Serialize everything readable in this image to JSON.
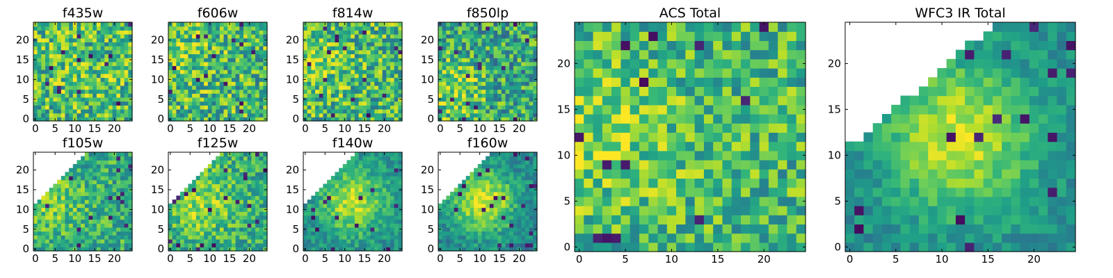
{
  "colors": {
    "colormap": "viridis",
    "background": "#ffffff",
    "frame": "#000000"
  },
  "chart_data": [
    {
      "type": "heatmap",
      "title": "f435w",
      "grid_size": [
        25,
        25
      ],
      "xlim": [
        0,
        24
      ],
      "ylim": [
        0,
        24
      ],
      "xticks": [
        0,
        5,
        10,
        15,
        20
      ],
      "yticks": [
        0,
        5,
        10,
        15,
        20
      ],
      "mask": "none",
      "center": [
        12,
        12
      ],
      "brightness": 0.68,
      "contrast": 0.3,
      "core_amp": 0.05,
      "seed": 11
    },
    {
      "type": "heatmap",
      "title": "f606w",
      "grid_size": [
        25,
        25
      ],
      "xlim": [
        0,
        24
      ],
      "ylim": [
        0,
        24
      ],
      "xticks": [
        0,
        5,
        10,
        15,
        20
      ],
      "yticks": [
        0,
        5,
        10,
        15,
        20
      ],
      "mask": "none",
      "center": [
        3,
        15
      ],
      "brightness": 0.66,
      "contrast": 0.3,
      "core_amp": 0.12,
      "seed": 23
    },
    {
      "type": "heatmap",
      "title": "f814w",
      "grid_size": [
        25,
        25
      ],
      "xlim": [
        0,
        24
      ],
      "ylim": [
        0,
        24
      ],
      "xticks": [
        0,
        5,
        10,
        15,
        20
      ],
      "yticks": [
        0,
        5,
        10,
        15,
        20
      ],
      "mask": "none",
      "center": [
        3,
        14
      ],
      "brightness": 0.66,
      "contrast": 0.3,
      "core_amp": 0.12,
      "seed": 37
    },
    {
      "type": "heatmap",
      "title": "f850lp",
      "grid_size": [
        25,
        25
      ],
      "xlim": [
        0,
        24
      ],
      "ylim": [
        0,
        24
      ],
      "xticks": [
        0,
        5,
        10,
        15,
        20
      ],
      "yticks": [
        0,
        5,
        10,
        15,
        20
      ],
      "mask": "none",
      "center": [
        3,
        7
      ],
      "brightness": 0.58,
      "contrast": 0.3,
      "core_amp": 0.25,
      "seed": 41
    },
    {
      "type": "heatmap",
      "title": "f105w",
      "grid_size": [
        25,
        25
      ],
      "xlim": [
        0,
        24
      ],
      "ylim": [
        0,
        24
      ],
      "xticks": [
        0,
        5,
        10,
        15,
        20
      ],
      "yticks": [
        0,
        5,
        10,
        15,
        20
      ],
      "mask": "upper-left",
      "center": [
        4,
        12
      ],
      "brightness": 0.62,
      "contrast": 0.22,
      "core_amp": 0.15,
      "seed": 53
    },
    {
      "type": "heatmap",
      "title": "f125w",
      "grid_size": [
        25,
        25
      ],
      "xlim": [
        0,
        24
      ],
      "ylim": [
        0,
        24
      ],
      "xticks": [
        0,
        5,
        10,
        15,
        20
      ],
      "yticks": [
        0,
        5,
        10,
        15,
        20
      ],
      "mask": "upper-left",
      "center": [
        8,
        12
      ],
      "brightness": 0.62,
      "contrast": 0.22,
      "core_amp": 0.22,
      "seed": 67
    },
    {
      "type": "heatmap",
      "title": "f140w",
      "grid_size": [
        25,
        25
      ],
      "xlim": [
        0,
        24
      ],
      "ylim": [
        0,
        24
      ],
      "xticks": [
        0,
        5,
        10,
        15,
        20
      ],
      "yticks": [
        0,
        5,
        10,
        15,
        20
      ],
      "mask": "upper-left",
      "center": [
        12,
        12
      ],
      "brightness": 0.5,
      "contrast": 0.15,
      "core_amp": 0.4,
      "seed": 79
    },
    {
      "type": "heatmap",
      "title": "f160w",
      "grid_size": [
        25,
        25
      ],
      "xlim": [
        0,
        24
      ],
      "ylim": [
        0,
        24
      ],
      "xticks": [
        0,
        5,
        10,
        15,
        20
      ],
      "yticks": [
        0,
        5,
        10,
        15,
        20
      ],
      "mask": "upper-left",
      "center": [
        11,
        12
      ],
      "brightness": 0.45,
      "contrast": 0.15,
      "core_amp": 0.5,
      "seed": 83
    },
    {
      "type": "heatmap",
      "title": "ACS Total",
      "grid_size": [
        25,
        25
      ],
      "xlim": [
        0,
        24
      ],
      "ylim": [
        0,
        24
      ],
      "xticks": [
        0,
        5,
        10,
        15,
        20
      ],
      "yticks": [
        0,
        5,
        10,
        15,
        20
      ],
      "mask": "none",
      "center": [
        3,
        12
      ],
      "brightness": 0.66,
      "contrast": 0.25,
      "core_amp": 0.15,
      "seed": 97
    },
    {
      "type": "heatmap",
      "title": "WFC3 IR Total",
      "grid_size": [
        25,
        25
      ],
      "xlim": [
        0,
        24
      ],
      "ylim": [
        0,
        24
      ],
      "xticks": [
        0,
        5,
        10,
        15,
        20
      ],
      "yticks": [
        0,
        5,
        10,
        15,
        20
      ],
      "mask": "upper-left-wide",
      "center": [
        12,
        12
      ],
      "brightness": 0.48,
      "contrast": 0.12,
      "core_amp": 0.45,
      "seed": 101
    }
  ]
}
